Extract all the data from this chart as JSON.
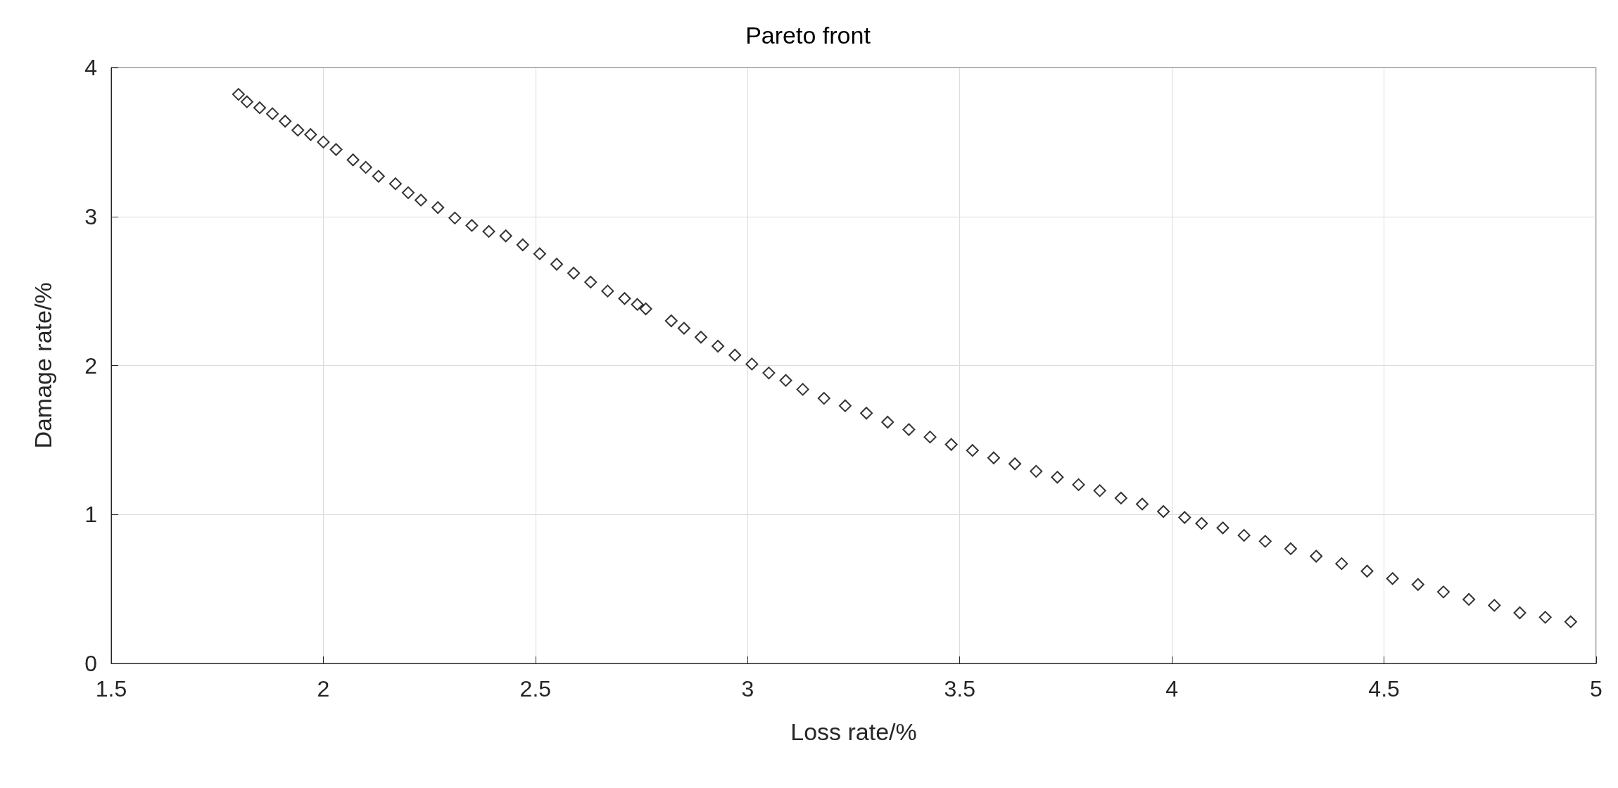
{
  "chart_data": {
    "type": "scatter",
    "title": "Pareto front",
    "xlabel": "Loss rate/%",
    "ylabel": "Damage rate/%",
    "xlim": [
      1.5,
      5
    ],
    "xticks": [
      1.5,
      2,
      2.5,
      3,
      3.5,
      4,
      4.5,
      5
    ],
    "ylim": [
      0,
      4
    ],
    "yticks": [
      0,
      1,
      2,
      3,
      4
    ],
    "grid": true,
    "marker": "diamond",
    "series": [
      {
        "color": "#000000",
        "x": [
          1.8,
          1.82,
          1.85,
          1.88,
          1.91,
          1.94,
          1.97,
          2.0,
          2.03,
          2.07,
          2.1,
          2.13,
          2.17,
          2.2,
          2.23,
          2.27,
          2.31,
          2.35,
          2.39,
          2.43,
          2.47,
          2.51,
          2.55,
          2.59,
          2.63,
          2.67,
          2.71,
          2.74,
          2.76,
          2.82,
          2.85,
          2.89,
          2.93,
          2.97,
          3.01,
          3.05,
          3.09,
          3.13,
          3.18,
          3.23,
          3.28,
          3.33,
          3.38,
          3.43,
          3.48,
          3.53,
          3.58,
          3.63,
          3.68,
          3.73,
          3.78,
          3.83,
          3.88,
          3.93,
          3.98,
          4.03,
          4.07,
          4.12,
          4.17,
          4.22,
          4.28,
          4.34,
          4.4,
          4.46,
          4.52,
          4.58,
          4.64,
          4.7,
          4.76,
          4.82,
          4.88,
          4.94
        ],
        "values": [
          3.82,
          3.77,
          3.73,
          3.69,
          3.64,
          3.58,
          3.55,
          3.5,
          3.45,
          3.38,
          3.33,
          3.27,
          3.22,
          3.16,
          3.11,
          3.06,
          2.99,
          2.94,
          2.9,
          2.87,
          2.81,
          2.75,
          2.68,
          2.62,
          2.56,
          2.5,
          2.45,
          2.41,
          2.38,
          2.3,
          2.25,
          2.19,
          2.13,
          2.07,
          2.01,
          1.95,
          1.9,
          1.84,
          1.78,
          1.73,
          1.68,
          1.62,
          1.57,
          1.52,
          1.47,
          1.43,
          1.38,
          1.34,
          1.29,
          1.25,
          1.2,
          1.16,
          1.11,
          1.07,
          1.02,
          0.98,
          0.94,
          0.91,
          0.86,
          0.82,
          0.77,
          0.72,
          0.67,
          0.62,
          0.57,
          0.53,
          0.48,
          0.43,
          0.39,
          0.34,
          0.31,
          0.28
        ]
      }
    ]
  }
}
